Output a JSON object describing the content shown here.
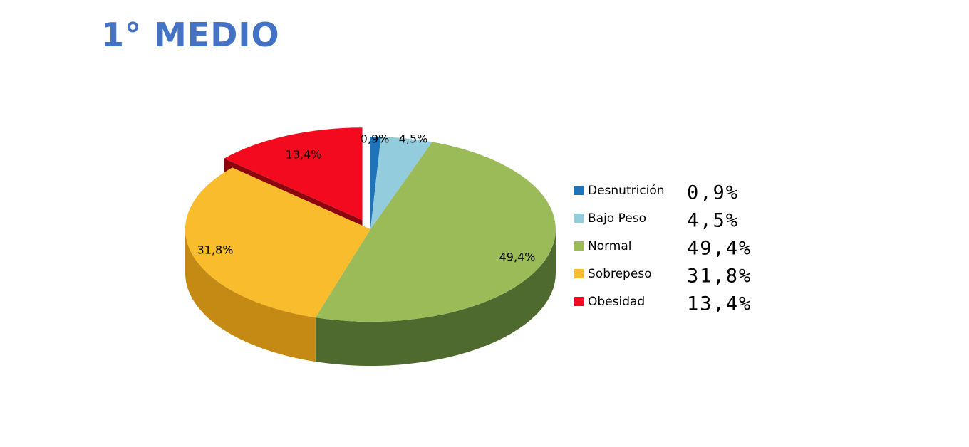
{
  "title": "1° MEDIO",
  "chart_data": {
    "type": "pie",
    "title": "1° MEDIO",
    "legend_position": "right",
    "exploded_slice": "Obesidad",
    "slices": [
      {
        "category": "Desnutrición",
        "value": 0.9,
        "data_label": "0,9%",
        "legend_value": "0,9%",
        "color": "#1F73B8",
        "side_color": "#12456E"
      },
      {
        "category": "Bajo Peso",
        "value": 4.5,
        "data_label": "4,5%",
        "legend_value": "4,5%",
        "color": "#93CDDD",
        "side_color": "#5B8E9C"
      },
      {
        "category": "Normal",
        "value": 49.4,
        "data_label": "49,4%",
        "legend_value": "49,4%",
        "color": "#9BBB59",
        "side_color": "#4E6A2E"
      },
      {
        "category": "Sobrepeso",
        "value": 31.8,
        "data_label": "31,8%",
        "legend_value": "31,8%",
        "color": "#F9BC2C",
        "side_color": "#C48A14"
      },
      {
        "category": "Obesidad",
        "value": 13.4,
        "data_label": "13,4%",
        "legend_value": "13,4%",
        "color": "#F40A1E",
        "side_color": "#8C0610"
      }
    ]
  }
}
